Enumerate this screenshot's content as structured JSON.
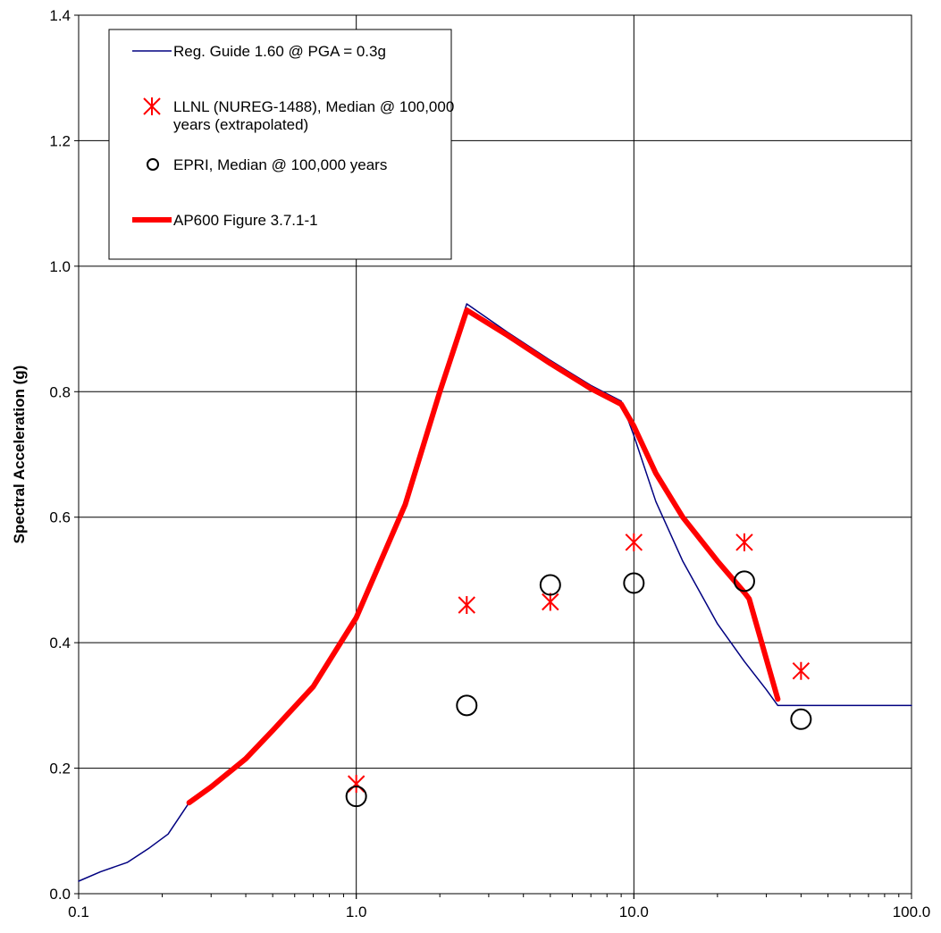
{
  "chart_data": {
    "type": "line",
    "title": "",
    "xlabel": "",
    "ylabel": "Spectral Acceleration (g)",
    "x_scale": "log",
    "xlim": [
      0.1,
      100
    ],
    "ylim": [
      0,
      1.4
    ],
    "x_ticks": [
      "0.1",
      "1.0",
      "10.0",
      "100.0"
    ],
    "y_ticks": [
      "0.0",
      "0.2",
      "0.4",
      "0.6",
      "0.8",
      "1.0",
      "1.2",
      "1.4"
    ],
    "grid": true,
    "legend_position": "top-left",
    "series": [
      {
        "name": "Reg. Guide 1.60 @ PGA = 0.3g",
        "kind": "line",
        "color": "#000080",
        "x": [
          0.1,
          0.12,
          0.15,
          0.18,
          0.21,
          0.25,
          0.3,
          0.4,
          0.5,
          0.7,
          1.0,
          1.5,
          2.0,
          2.5,
          3.5,
          5.0,
          7.0,
          9.0,
          10.0,
          12.0,
          15.0,
          20.0,
          25.0,
          30.0,
          33.0,
          50.0,
          100.0
        ],
        "y": [
          0.02,
          0.035,
          0.05,
          0.073,
          0.095,
          0.145,
          0.17,
          0.215,
          0.26,
          0.33,
          0.44,
          0.62,
          0.8,
          0.94,
          0.895,
          0.85,
          0.81,
          0.785,
          0.73,
          0.625,
          0.53,
          0.43,
          0.37,
          0.325,
          0.3,
          0.3,
          0.3
        ]
      },
      {
        "name": "LLNL (NUREG-1488), Median @ 100,000 years (extrapolated)",
        "kind": "scatter",
        "marker": "asterisk",
        "color": "#ff0000",
        "x": [
          1.0,
          2.5,
          5.0,
          10.0,
          25.0,
          40.0
        ],
        "y": [
          0.175,
          0.46,
          0.465,
          0.56,
          0.56,
          0.355
        ]
      },
      {
        "name": "EPRI, Median @ 100,000 years",
        "kind": "scatter",
        "marker": "circle",
        "color": "#000000",
        "x": [
          1.0,
          2.5,
          5.0,
          10.0,
          25.0,
          40.0
        ],
        "y": [
          0.155,
          0.3,
          0.492,
          0.495,
          0.498,
          0.278
        ]
      },
      {
        "name": "AP600 Figure 3.7.1-1",
        "kind": "line",
        "color": "#ff0000",
        "x": [
          0.25,
          0.3,
          0.4,
          0.5,
          0.7,
          1.0,
          1.5,
          2.0,
          2.5,
          3.5,
          5.0,
          7.0,
          9.0,
          10.0,
          12.0,
          15.0,
          20.0,
          25.0,
          26.0,
          33.0
        ],
        "y": [
          0.145,
          0.17,
          0.215,
          0.26,
          0.33,
          0.44,
          0.62,
          0.8,
          0.93,
          0.89,
          0.845,
          0.805,
          0.78,
          0.745,
          0.67,
          0.6,
          0.53,
          0.48,
          0.47,
          0.31
        ]
      }
    ]
  }
}
